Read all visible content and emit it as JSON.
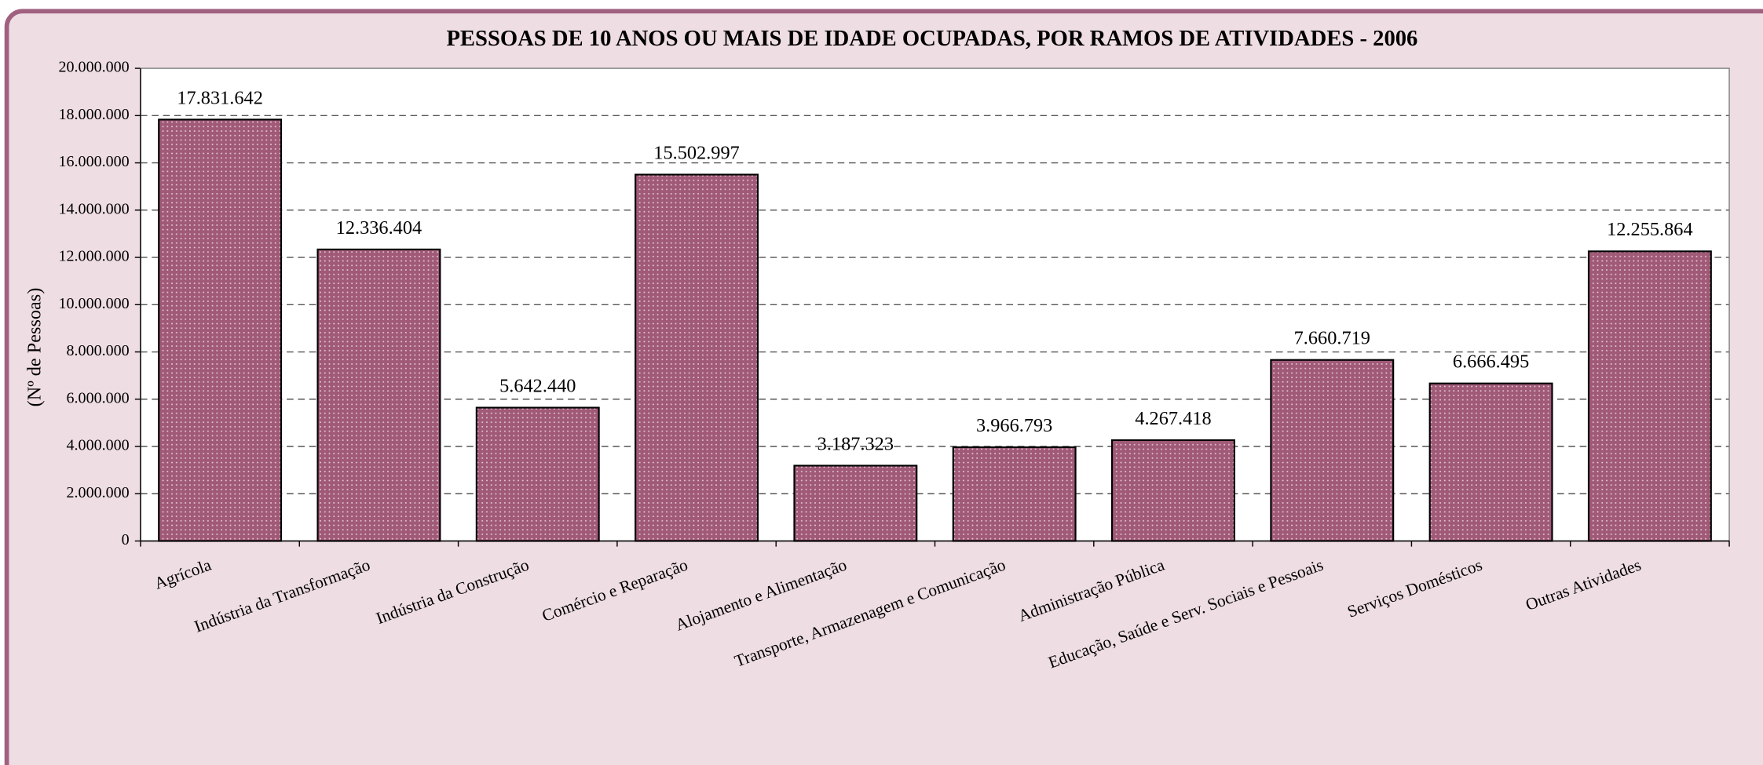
{
  "chart_data": {
    "type": "bar",
    "title": "PESSOAS DE 10 ANOS OU MAIS DE IDADE OCUPADAS, POR RAMOS DE ATIVIDADES - 2006",
    "y_label": "(Nº de Pessoas)",
    "categories": [
      "Agrícola",
      "Indústria da Transformação",
      "Indústria da Construção",
      "Comércio e Reparação",
      "Alojamento e Alimentação",
      "Transporte, Armazenagem e Comunicação",
      "Administração Pública",
      "Educação, Saúde e Serv. Sociais e Pessoais",
      "Serviços Domésticos",
      "Outras Atividades"
    ],
    "values": [
      17831642,
      12336404,
      5642440,
      15502997,
      3187323,
      3966793,
      4267418,
      7660719,
      6666495,
      12255864
    ],
    "value_labels": [
      "17.831.642",
      "12.336.404",
      "5.642.440",
      "15.502.997",
      "3.187.323",
      "3.966.793",
      "4.267.418",
      "7.660.719",
      "6.666.495",
      "12.255.864"
    ],
    "color": "#a05a78",
    "ylim": [
      0,
      20000000
    ],
    "yticks": [
      0,
      {
        "value": 2000000,
        "label": "2.000.000"
      },
      {
        "value": 4000000,
        "label": "4.000.000"
      },
      {
        "value": 6000000,
        "label": "6.000.000"
      },
      {
        "value": 8000000,
        "label": "8.000.000"
      },
      {
        "value": 10000000,
        "label": "10.000.000"
      },
      {
        "value": 12000000,
        "label": "12.000.000"
      },
      {
        "value": 14000000,
        "label": "14.000.000"
      },
      {
        "value": 16000000,
        "label": "16.000.000"
      },
      {
        "value": 18000000,
        "label": "18.000.000"
      },
      {
        "value": 20000000,
        "label": "20.000.000"
      }
    ],
    "grid": true
  }
}
